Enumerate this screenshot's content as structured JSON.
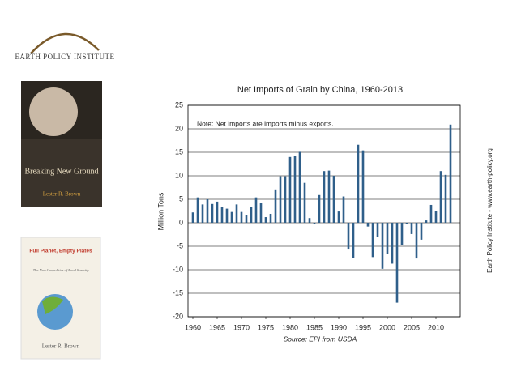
{
  "logo": {
    "name": "Earth Policy Institute"
  },
  "books": [
    {
      "title": "Breaking New Ground",
      "author": "Lester R. Brown"
    },
    {
      "title": "Full Planet, Empty Plates",
      "subtitle": "The New Geopolitics of Food Scarcity",
      "author": "Lester R. Brown"
    }
  ],
  "credit": "Earth Policy Institute - www.earth-policy.org",
  "chart_data": {
    "type": "bar",
    "title": "Net Imports of Grain by China, 1960-2013",
    "annotation": "Note: Net imports are imports minus exports.",
    "source": "Source: EPI from USDA",
    "y_label": "Million Tons",
    "color": "#2f5f8a",
    "grid": true,
    "x": [
      1960,
      1961,
      1962,
      1963,
      1964,
      1965,
      1966,
      1967,
      1968,
      1969,
      1970,
      1971,
      1972,
      1973,
      1974,
      1975,
      1976,
      1977,
      1978,
      1979,
      1980,
      1981,
      1982,
      1983,
      1984,
      1985,
      1986,
      1987,
      1988,
      1989,
      1990,
      1991,
      1992,
      1993,
      1994,
      1995,
      1996,
      1997,
      1998,
      1999,
      2000,
      2001,
      2002,
      2003,
      2004,
      2005,
      2006,
      2007,
      2008,
      2009,
      2010,
      2011,
      2012,
      2013
    ],
    "values": [
      2.2,
      5.4,
      3.9,
      5.0,
      4.0,
      4.5,
      3.4,
      3.0,
      2.3,
      3.9,
      2.3,
      1.6,
      3.3,
      5.4,
      4.2,
      1.2,
      1.9,
      7.1,
      9.9,
      9.9,
      14.0,
      14.2,
      15.1,
      8.5,
      1.0,
      -0.3,
      5.9,
      11.0,
      11.1,
      10.0,
      2.4,
      5.6,
      -5.7,
      -7.5,
      16.6,
      15.4,
      -0.8,
      -7.3,
      -3.0,
      -9.8,
      -6.6,
      -8.7,
      -17.0,
      -4.8,
      -0.3,
      -2.4,
      -7.6,
      -3.6,
      0.5,
      3.8,
      2.5,
      11.0,
      10.2,
      20.9
    ],
    "xlim": [
      1959,
      2015
    ],
    "xticks": [
      1960,
      1965,
      1970,
      1975,
      1980,
      1985,
      1990,
      1995,
      2000,
      2005,
      2010
    ],
    "ylim": [
      -20,
      25
    ],
    "yticks": [
      -20,
      -15,
      -10,
      -5,
      0,
      5,
      10,
      15,
      20,
      25
    ]
  }
}
